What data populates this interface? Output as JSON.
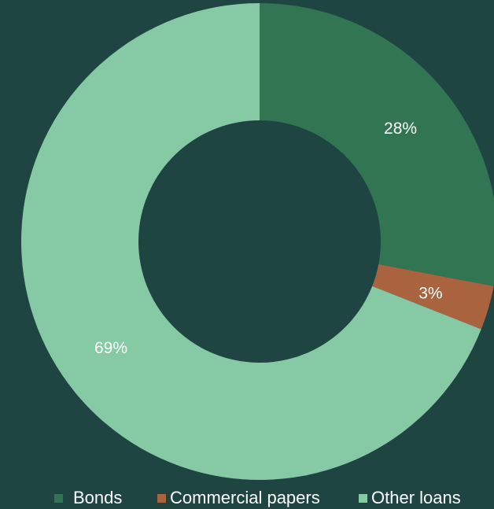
{
  "chart_data": {
    "type": "pie",
    "variant": "donut",
    "categories": [
      "Bonds",
      "Commercial papers",
      "Other loans"
    ],
    "values": [
      28,
      3,
      69
    ],
    "data_labels": [
      "28%",
      "3%",
      "69%"
    ],
    "colors": [
      "#317552",
      "#a9633f",
      "#86c9a5"
    ],
    "legend_position": "bottom",
    "title": ""
  },
  "legend": {
    "items": [
      {
        "label": "Bonds",
        "color": "#317552"
      },
      {
        "label": "Commercial papers",
        "color": "#a9633f"
      },
      {
        "label": "Other loans",
        "color": "#86c9a5"
      }
    ]
  },
  "background_color": "#1f4542"
}
